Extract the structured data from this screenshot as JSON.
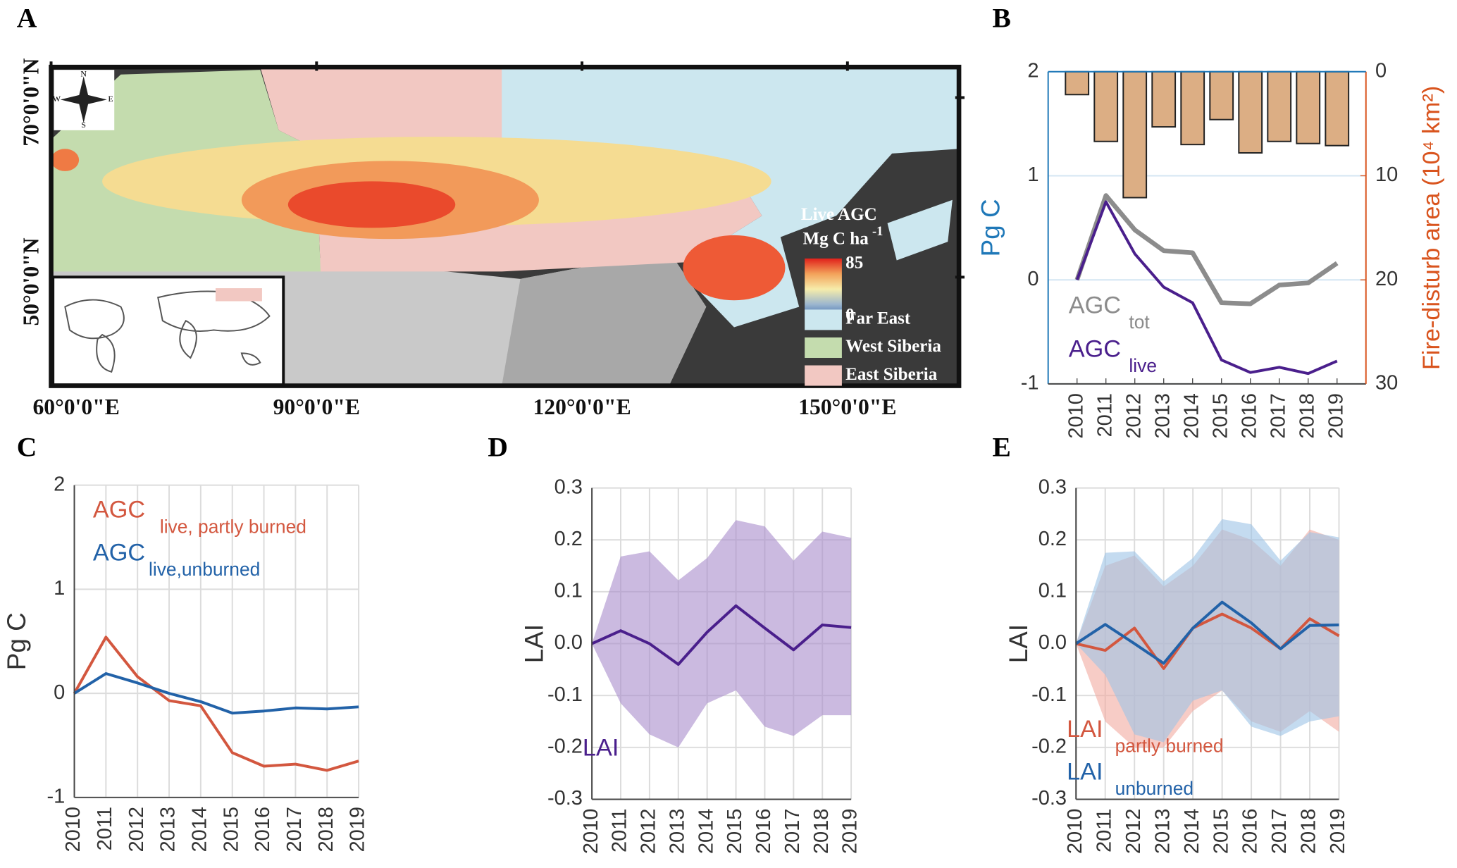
{
  "chart_data": [
    {
      "type": "map",
      "panel": "A",
      "xticks": [
        {
          "value": 60,
          "label": "60°0'0\"E"
        },
        {
          "value": 90,
          "label": "90°0'0\"E"
        },
        {
          "value": 120,
          "label": "120°0'0\"E"
        },
        {
          "value": 150,
          "label": "150°0'0\"E"
        }
      ],
      "xlim": [
        60,
        162.6
      ],
      "yticks": [
        {
          "value": 70,
          "label": "70°0'0\"N"
        },
        {
          "value": 50,
          "label": "50°0'0\"N"
        }
      ],
      "ylim": [
        37.9,
        73.4
      ],
      "legend_title": "Live AGC",
      "legend_unit": "Mg C ha",
      "legend_unit_exponent": "-1",
      "colorbar_ticks": [
        85,
        0
      ],
      "colorbar_colors": [
        "#e0201b",
        "#f3a25a",
        "#f6ecaa",
        "#9bb6cf",
        "#2f5ea6"
      ],
      "regions": [
        {
          "name": "Far East",
          "color": "#cce7ef"
        },
        {
          "name": "West Siberia",
          "color": "#c4dcae"
        },
        {
          "name": "East Siberia",
          "color": "#f2c8c2"
        }
      ],
      "compass": [
        "N",
        "E",
        "S",
        "W"
      ]
    },
    {
      "type": "combo",
      "panel": "B",
      "x": [
        2010,
        2011,
        2012,
        2013,
        2014,
        2015,
        2016,
        2017,
        2018,
        2019
      ],
      "xticks": [
        2010,
        2011,
        2012,
        2013,
        2014,
        2015,
        2016,
        2017,
        2018,
        2019
      ],
      "xlim": [
        2009,
        2020
      ],
      "ylabel": "Pg C",
      "ylim": [
        -1,
        2
      ],
      "yticks": [
        -1,
        0,
        1,
        2
      ],
      "ycolor": "#1f78b8",
      "y2label": "Fire-disturb area (10⁴ km²)",
      "y2lim": [
        30,
        0
      ],
      "y2ticks": [
        0,
        10,
        20,
        30
      ],
      "y2color": "#d9541e",
      "grid": "y",
      "series": [
        {
          "type": "bar",
          "axis": "y2",
          "color": "#dcae84",
          "values": [
            2.2,
            6.7,
            12.1,
            5.3,
            7.0,
            4.6,
            7.8,
            6.7,
            6.9,
            7.1
          ]
        },
        {
          "name": "AGC",
          "subscript": "tot",
          "color": "#8c8c8c",
          "values": [
            0,
            0.81,
            0.48,
            0.28,
            0.26,
            -0.22,
            -0.23,
            -0.05,
            -0.03,
            0.16
          ]
        },
        {
          "name": "AGC",
          "subscript": "live",
          "color": "#4a1f8c",
          "values": [
            0,
            0.75,
            0.25,
            -0.07,
            -0.22,
            -0.77,
            -0.89,
            -0.84,
            -0.9,
            -0.78
          ]
        }
      ]
    },
    {
      "type": "line",
      "panel": "C",
      "x": [
        2010,
        2011,
        2012,
        2013,
        2014,
        2015,
        2016,
        2017,
        2018,
        2019
      ],
      "xticks": [
        2010,
        2011,
        2012,
        2013,
        2014,
        2015,
        2016,
        2017,
        2018,
        2019
      ],
      "xlim": [
        2010,
        2019
      ],
      "ylabel": "Pg C",
      "ylim": [
        -1,
        2
      ],
      "yticks": [
        -1,
        0,
        1,
        2
      ],
      "grid": true,
      "series": [
        {
          "name": "AGC",
          "subscript": "live, partly burned",
          "color": "#d3573f",
          "values": [
            0,
            0.54,
            0.16,
            -0.07,
            -0.12,
            -0.57,
            -0.7,
            -0.68,
            -0.74,
            -0.65
          ]
        },
        {
          "name": "AGC",
          "subscript": "live,unburned",
          "color": "#2262a8",
          "values": [
            0,
            0.19,
            0.1,
            0,
            -0.08,
            -0.19,
            -0.17,
            -0.14,
            -0.15,
            -0.13
          ]
        }
      ]
    },
    {
      "type": "line",
      "panel": "D",
      "x": [
        2010,
        2011,
        2012,
        2013,
        2014,
        2015,
        2016,
        2017,
        2018,
        2019
      ],
      "xticks": [
        2010,
        2011,
        2012,
        2013,
        2014,
        2015,
        2016,
        2017,
        2018,
        2019
      ],
      "xlim": [
        2010,
        2019
      ],
      "ylabel": "LAI",
      "ylim": [
        -0.3,
        0.3
      ],
      "yticks": [
        -0.3,
        -0.2,
        -0.1,
        {
          "value": 0,
          "label": "0.0"
        },
        0.1,
        0.2,
        0.3
      ],
      "grid": true,
      "series": [
        {
          "name": "LAI",
          "color": "#4a1f8c",
          "band_color": "#a88ccb",
          "values": [
            0,
            0.025,
            0,
            -0.04,
            0.022,
            0.073,
            0.03,
            -0.012,
            0.036,
            0.031
          ],
          "upper": [
            0,
            0.168,
            0.178,
            0.122,
            0.165,
            0.238,
            0.226,
            0.16,
            0.216,
            0.204
          ],
          "lower": [
            0,
            -0.115,
            -0.175,
            -0.2,
            -0.115,
            -0.09,
            -0.16,
            -0.178,
            -0.138,
            -0.138
          ]
        }
      ]
    },
    {
      "type": "line",
      "panel": "E",
      "x": [
        2010,
        2011,
        2012,
        2013,
        2014,
        2015,
        2016,
        2017,
        2018,
        2019
      ],
      "xticks": [
        2010,
        2011,
        2012,
        2013,
        2014,
        2015,
        2016,
        2017,
        2018,
        2019
      ],
      "xlim": [
        2010,
        2019
      ],
      "ylabel": "LAI",
      "ylim": [
        -0.3,
        0.3
      ],
      "yticks": [
        -0.3,
        -0.2,
        -0.1,
        {
          "value": 0,
          "label": "0.0"
        },
        0.1,
        0.2,
        0.3
      ],
      "grid": true,
      "series": [
        {
          "name": "LAI",
          "subscript": "partly burned",
          "color": "#d3573f",
          "band_color": "#f2aaa0",
          "values": [
            0,
            -0.013,
            0.03,
            -0.048,
            0.03,
            0.057,
            0.03,
            -0.01,
            0.048,
            0.015
          ],
          "upper": [
            0,
            0.15,
            0.17,
            0.11,
            0.15,
            0.22,
            0.2,
            0.15,
            0.22,
            0.2
          ],
          "lower": [
            0,
            -0.15,
            -0.2,
            -0.2,
            -0.13,
            -0.09,
            -0.15,
            -0.17,
            -0.13,
            -0.17
          ]
        },
        {
          "name": "LAI",
          "subscript": "unburned",
          "color": "#2262a8",
          "band_color": "#9dc3e6",
          "values": [
            0,
            0.037,
            0,
            -0.038,
            0.03,
            0.08,
            0.04,
            -0.01,
            0.035,
            0.036
          ],
          "upper": [
            0,
            0.175,
            0.178,
            0.12,
            0.165,
            0.24,
            0.23,
            0.16,
            0.215,
            0.205
          ],
          "lower": [
            0,
            -0.06,
            -0.175,
            -0.19,
            -0.11,
            -0.09,
            -0.16,
            -0.178,
            -0.15,
            -0.14
          ]
        }
      ]
    }
  ]
}
